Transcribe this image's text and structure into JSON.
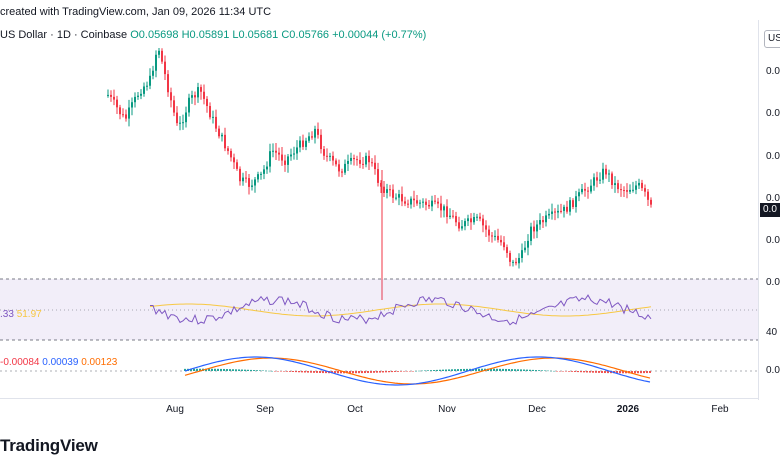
{
  "header": {
    "credit": "created with TradingView.com, Jan 09, 2026 11:34 UTC"
  },
  "legend": {
    "symbol": "US Dollar · 1D · Coinbase",
    "open": "O0.05698",
    "high": "H0.05891",
    "low": "L0.05681",
    "close": "C0.05766",
    "change": "+0.00044 (+0.77%)"
  },
  "price_axis": {
    "currency_box": "US",
    "labels": [
      "0.0",
      "0.0",
      "0.0",
      "0.0",
      "0.0",
      "0.0"
    ],
    "current_tag": "0.0"
  },
  "rsi": {
    "val1": ".33",
    "val2": "51.97",
    "level_label": "40"
  },
  "macd": {
    "hist": "-0.00084",
    "macd": "0.00039",
    "signal": "0.00123",
    "axis_label": "0.0"
  },
  "time_axis": {
    "labels": [
      "Aug",
      "Sep",
      "Oct",
      "Nov",
      "Dec",
      "2026",
      "Feb"
    ]
  },
  "logo": {
    "text": "TradingView"
  },
  "colors": {
    "up": "#089981",
    "down": "#f23645",
    "rsi": "#7e57c2",
    "rsi_ma": "#f7c843",
    "macd": "#2962ff",
    "signal": "#ff6d00"
  }
}
